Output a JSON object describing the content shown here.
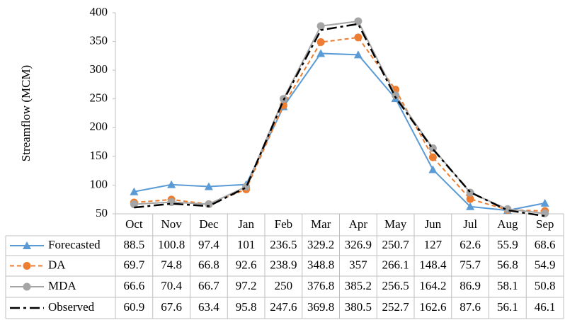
{
  "chart_data": {
    "type": "line",
    "y_label": "Streamflow (MCM)",
    "categories": [
      "Oct",
      "Nov",
      "Dec",
      "Jan",
      "Feb",
      "Mar",
      "Apr",
      "May",
      "Jun",
      "Jul",
      "Aug",
      "Sep"
    ],
    "ylim": [
      50,
      400
    ],
    "yticks": [
      50,
      100,
      150,
      200,
      250,
      300,
      350,
      400
    ],
    "series": [
      {
        "name": "Forecasted",
        "color": "#5b9bd5",
        "marker": "triangle",
        "line_style": "solid",
        "values": [
          88.5,
          100.8,
          97.4,
          101,
          236.5,
          329.2,
          326.9,
          250.7,
          127,
          62.6,
          55.9,
          68.6
        ]
      },
      {
        "name": "DA",
        "color": "#ed7d31",
        "marker": "circle",
        "line_style": "dashed",
        "values": [
          69.7,
          74.8,
          66.8,
          92.6,
          238.9,
          348.8,
          357,
          266.1,
          148.4,
          75.7,
          56.8,
          54.9
        ]
      },
      {
        "name": "MDA",
        "color": "#a5a5a5",
        "marker": "circle",
        "line_style": "solid",
        "values": [
          66.6,
          70.4,
          66.7,
          97.2,
          250,
          376.8,
          385.2,
          256.5,
          164.2,
          86.9,
          58.1,
          50.8
        ]
      },
      {
        "name": "Observed",
        "color": "#000000",
        "marker": "none",
        "line_style": "dashdot",
        "values": [
          60.9,
          67.6,
          63.4,
          95.8,
          247.6,
          369.8,
          380.5,
          252.7,
          162.6,
          87.6,
          56.1,
          46.1
        ]
      }
    ]
  }
}
